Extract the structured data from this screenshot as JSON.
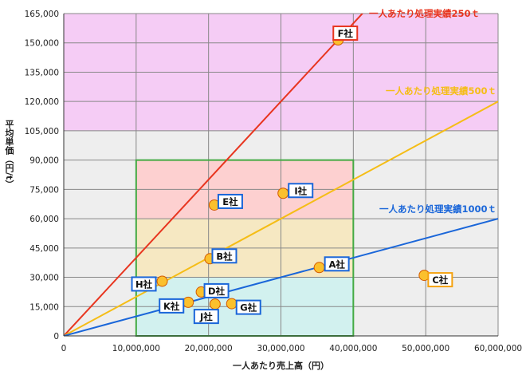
{
  "chart_data": {
    "type": "scatter",
    "xlabel": "一人あたり売上高（円）",
    "ylabel": "平均単価（円/t）",
    "xlim": [
      0,
      60000000
    ],
    "ylim": [
      0,
      165000
    ],
    "x_ticks": [
      "0",
      "10,000,000",
      "20,000,000",
      "30,000,000",
      "40,000,000",
      "50,000,000",
      "60,000,000"
    ],
    "y_ticks": [
      "0",
      "15,000",
      "30,000",
      "45,000",
      "60,000",
      "75,000",
      "90,000",
      "105,000",
      "120,000",
      "135,000",
      "150,000",
      "165,000"
    ],
    "grid": true,
    "bands": [
      {
        "x": [
          0,
          60000000
        ],
        "y": [
          105000,
          165000
        ],
        "color": "#f5ccf5"
      },
      {
        "x": [
          10000000,
          40000000
        ],
        "y": [
          60000,
          90000
        ],
        "color": "#fdd0d0"
      },
      {
        "x": [
          10000000,
          40000000
        ],
        "y": [
          30000,
          60000
        ],
        "color": "#f6e8c2"
      },
      {
        "x": [
          10000000,
          40000000
        ],
        "y": [
          0,
          30000
        ],
        "color": "#d2f1ef"
      }
    ],
    "target_box": {
      "x": [
        10000000,
        40000000
      ],
      "y": [
        0,
        90000
      ],
      "color": "#44aa44"
    },
    "reference_lines": [
      {
        "label": "一人あたり処理実績250ｔ",
        "color": "#e8351f",
        "slope": 0.004
      },
      {
        "label": "一人あたり処理実績500ｔ",
        "color": "#f5bd16",
        "slope": 0.002
      },
      {
        "label": "一人あたり処理実績1000ｔ",
        "color": "#1a66d9",
        "slope": 0.001
      }
    ],
    "points": [
      {
        "label": "A社",
        "x": 35300000,
        "y": 35000,
        "box": "#1a66d9"
      },
      {
        "label": "B社",
        "x": 20200000,
        "y": 39500,
        "box": "#1a66d9"
      },
      {
        "label": "C社",
        "x": 49800000,
        "y": 31000,
        "box": "#f5a20f"
      },
      {
        "label": "D社",
        "x": 19000000,
        "y": 22500,
        "box": "#1a66d9"
      },
      {
        "label": "E社",
        "x": 20800000,
        "y": 67000,
        "box": "#1a66d9"
      },
      {
        "label": "F社",
        "x": 37900000,
        "y": 151500,
        "box": "#e8351f"
      },
      {
        "label": "G社",
        "x": 23200000,
        "y": 16500,
        "box": "#1a66d9"
      },
      {
        "label": "H社",
        "x": 13600000,
        "y": 28000,
        "box": "#1a66d9"
      },
      {
        "label": "I社",
        "x": 30300000,
        "y": 73000,
        "box": "#1a66d9"
      },
      {
        "label": "J社",
        "x": 20900000,
        "y": 16300,
        "box": "#1a66d9"
      },
      {
        "label": "K社",
        "x": 17200000,
        "y": 17200,
        "box": "#1a66d9"
      }
    ],
    "point_color": "#fbc02d"
  }
}
